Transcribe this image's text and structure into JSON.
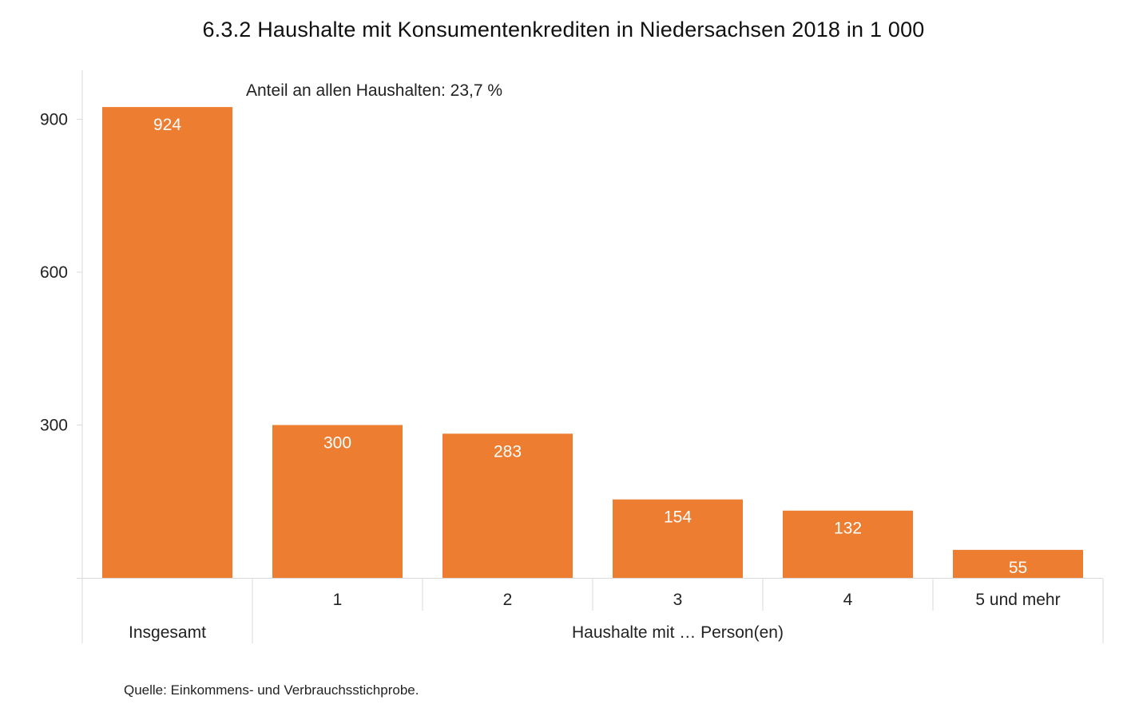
{
  "chart_data": {
    "type": "bar",
    "title": "6.3.2 Haushalte mit Konsumentenkrediten in Niedersachsen 2018 in 1 000",
    "annotation": "Anteil an allen Haushalten: 23,7 %",
    "categories": [
      "Insgesamt",
      "1",
      "2",
      "3",
      "4",
      "5 und mehr"
    ],
    "values": [
      924,
      300,
      283,
      154,
      132,
      55
    ],
    "value_labels": [
      "924",
      "300",
      "283",
      "154",
      "132",
      "55"
    ],
    "group_labels": [
      {
        "label": "Insgesamt",
        "categories": [
          "Insgesamt"
        ]
      },
      {
        "label": "Haushalte mit … Person(en)",
        "categories": [
          "1",
          "2",
          "3",
          "4",
          "5 und mehr"
        ]
      }
    ],
    "xlabel": "",
    "ylabel": "",
    "ylim": [
      0,
      1000
    ],
    "yticks": [
      300,
      600,
      900
    ],
    "ytick_labels": [
      "300",
      "600",
      "900"
    ],
    "grid": false,
    "legend": "none",
    "bar_color": "#ED7D31",
    "value_label_color": "#FFFFFF",
    "axis_color": "#D9D9D9"
  },
  "source": "Quelle: Einkommens- und Verbrauchsstichprobe."
}
